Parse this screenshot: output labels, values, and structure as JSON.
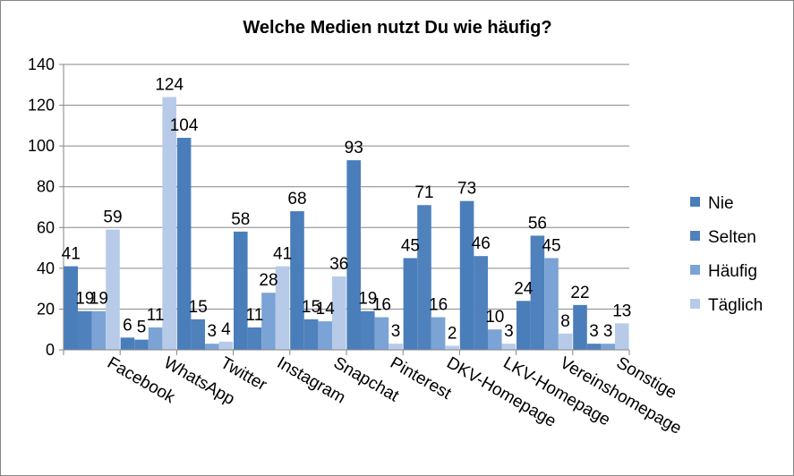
{
  "chart_data": {
    "type": "bar",
    "title": "Welche Medien nutzt Du wie häufig?",
    "xlabel": "",
    "ylabel": "",
    "ylim": [
      0,
      140
    ],
    "yticks": [
      0,
      20,
      40,
      60,
      80,
      100,
      120,
      140
    ],
    "grid": true,
    "legend_position": "right",
    "categories": [
      "Facebook",
      "WhatsApp",
      "Twitter",
      "Instagram",
      "Snapchat",
      "Pinterest",
      "DKV-Homepage",
      "LKV-Homepage",
      "Vereinshomepage",
      "Sonstige"
    ],
    "series": [
      {
        "name": "Nie",
        "color": "#4A7EBB",
        "values": [
          41,
          6,
          104,
          58,
          68,
          93,
          45,
          73,
          24,
          22
        ]
      },
      {
        "name": "Selten",
        "color": "#4F81BD",
        "values": [
          19,
          5,
          15,
          11,
          15,
          19,
          71,
          46,
          56,
          3
        ]
      },
      {
        "name": "Häufig",
        "color": "#7BA3D6",
        "values": [
          19,
          11,
          3,
          28,
          14,
          16,
          16,
          10,
          45,
          3
        ]
      },
      {
        "name": "Täglich",
        "color": "#B7CBE8",
        "values": [
          59,
          124,
          4,
          41,
          36,
          3,
          2,
          3,
          8,
          13
        ]
      }
    ]
  }
}
